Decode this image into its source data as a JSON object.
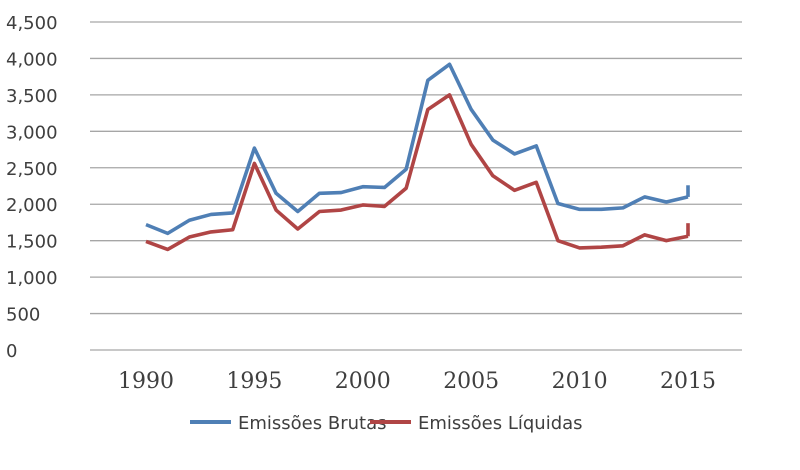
{
  "chart_data": {
    "type": "line",
    "title": "",
    "xlabel": "",
    "ylabel": "",
    "x": [
      1990,
      1991,
      1992,
      1993,
      1994,
      1995,
      1996,
      1997,
      1998,
      1999,
      2000,
      2001,
      2002,
      2003,
      2004,
      2005,
      2006,
      2007,
      2008,
      2009,
      2010,
      2011,
      2012,
      2013,
      2014,
      2015
    ],
    "x_ticks": [
      "1990",
      "1995",
      "2000",
      "2005",
      "2010",
      "2015"
    ],
    "y_ticks": [
      "0",
      "500",
      "1,000",
      "1,500",
      "2,000",
      "2,500",
      "3,000",
      "3,500",
      "4,000",
      "4,500"
    ],
    "ylim": [
      0,
      4500
    ],
    "grid": true,
    "legend_position": "bottom",
    "series": [
      {
        "name": "Emissões Brutas",
        "color": "#4f7fb5",
        "values": [
          1720,
          1600,
          1780,
          1860,
          1880,
          2770,
          2150,
          1900,
          2150,
          2160,
          2240,
          2230,
          2480,
          3700,
          3920,
          3300,
          2880,
          2690,
          2800,
          2010,
          1930,
          1930,
          1950,
          2100,
          2030,
          2100
        ],
        "end_tick": [
          2100,
          2260
        ]
      },
      {
        "name": "Emissões Líquidas",
        "color": "#b04545",
        "values": [
          1490,
          1380,
          1550,
          1620,
          1650,
          2560,
          1920,
          1660,
          1900,
          1920,
          1990,
          1970,
          2220,
          3300,
          3500,
          2820,
          2390,
          2190,
          2300,
          1500,
          1400,
          1410,
          1430,
          1580,
          1500,
          1560
        ],
        "end_tick": [
          1560,
          1740
        ]
      }
    ]
  }
}
